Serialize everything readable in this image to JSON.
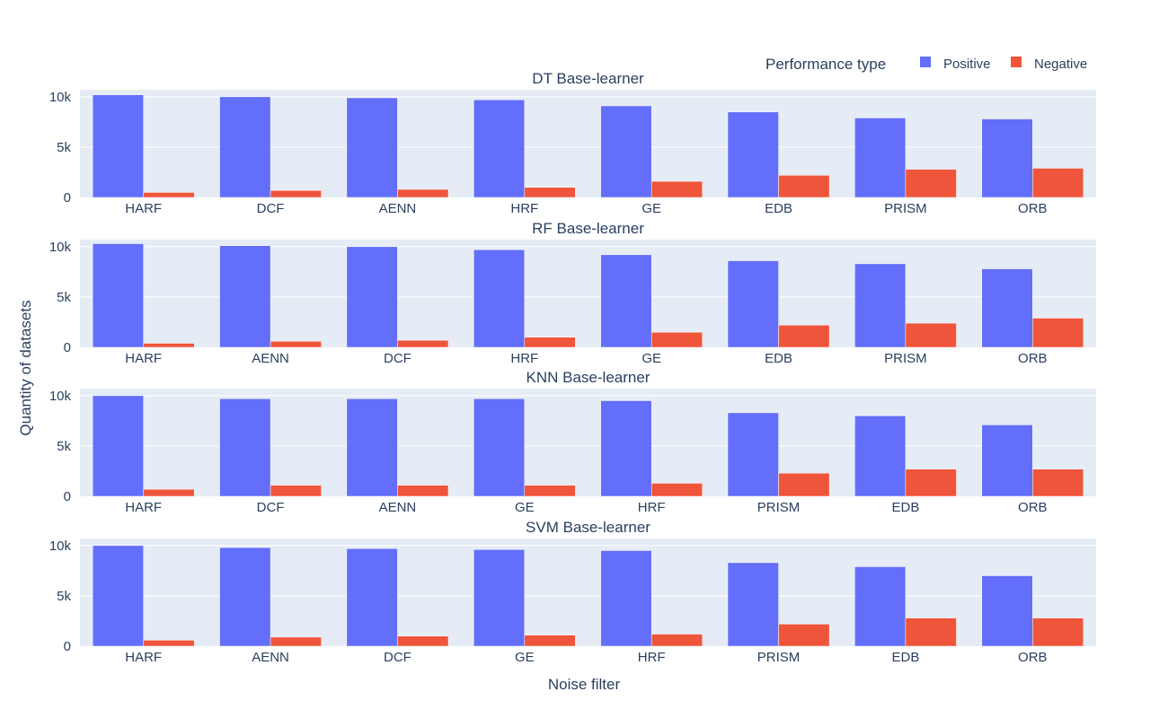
{
  "legend": {
    "title": "Performance type",
    "items": [
      {
        "label": "Positive",
        "color": "#636efa"
      },
      {
        "label": "Negative",
        "color": "#ef553b"
      }
    ]
  },
  "axes": {
    "xlabel": "Noise filter",
    "ylabel": "Quantity of datasets"
  },
  "colors": {
    "plot_bg": "#e5ecf6",
    "grid": "#ffffff",
    "text": "#2a3f5f"
  },
  "chart_data": [
    {
      "type": "bar",
      "title": "DT Base-learner",
      "categories": [
        "HARF",
        "DCF",
        "AENN",
        "HRF",
        "GE",
        "EDB",
        "PRISM",
        "ORB"
      ],
      "series": [
        {
          "name": "Positive",
          "values": [
            10200,
            10000,
            9900,
            9700,
            9100,
            8500,
            7900,
            7800
          ]
        },
        {
          "name": "Negative",
          "values": [
            500,
            700,
            800,
            1000,
            1600,
            2200,
            2800,
            2900
          ]
        }
      ],
      "ylim": [
        0,
        10700
      ],
      "yticks": [
        0,
        5000,
        10000
      ],
      "ytick_labels": [
        "0",
        "5k",
        "10k"
      ]
    },
    {
      "type": "bar",
      "title": "RF Base-learner",
      "categories": [
        "HARF",
        "AENN",
        "DCF",
        "HRF",
        "GE",
        "EDB",
        "PRISM",
        "ORB"
      ],
      "series": [
        {
          "name": "Positive",
          "values": [
            10300,
            10100,
            10000,
            9700,
            9200,
            8600,
            8300,
            7800
          ]
        },
        {
          "name": "Negative",
          "values": [
            400,
            600,
            700,
            1000,
            1500,
            2200,
            2400,
            2900
          ]
        }
      ],
      "ylim": [
        0,
        10700
      ],
      "yticks": [
        0,
        5000,
        10000
      ],
      "ytick_labels": [
        "0",
        "5k",
        "10k"
      ]
    },
    {
      "type": "bar",
      "title": "KNN Base-learner",
      "categories": [
        "HARF",
        "DCF",
        "AENN",
        "GE",
        "HRF",
        "PRISM",
        "EDB",
        "ORB"
      ],
      "series": [
        {
          "name": "Positive",
          "values": [
            10000,
            9700,
            9700,
            9700,
            9500,
            8300,
            8000,
            7100
          ]
        },
        {
          "name": "Negative",
          "values": [
            700,
            1100,
            1100,
            1100,
            1300,
            2300,
            2700,
            2700
          ]
        }
      ],
      "ylim": [
        0,
        10700
      ],
      "yticks": [
        0,
        5000,
        10000
      ],
      "ytick_labels": [
        "0",
        "5k",
        "10k"
      ]
    },
    {
      "type": "bar",
      "title": "SVM Base-learner",
      "categories": [
        "HARF",
        "AENN",
        "DCF",
        "GE",
        "HRF",
        "PRISM",
        "EDB",
        "ORB"
      ],
      "series": [
        {
          "name": "Positive",
          "values": [
            10000,
            9800,
            9700,
            9600,
            9500,
            8300,
            7900,
            7000
          ]
        },
        {
          "name": "Negative",
          "values": [
            600,
            900,
            1000,
            1100,
            1200,
            2200,
            2800,
            2800
          ]
        }
      ],
      "ylim": [
        0,
        10700
      ],
      "yticks": [
        0,
        5000,
        10000
      ],
      "ytick_labels": [
        "0",
        "5k",
        "10k"
      ]
    }
  ]
}
